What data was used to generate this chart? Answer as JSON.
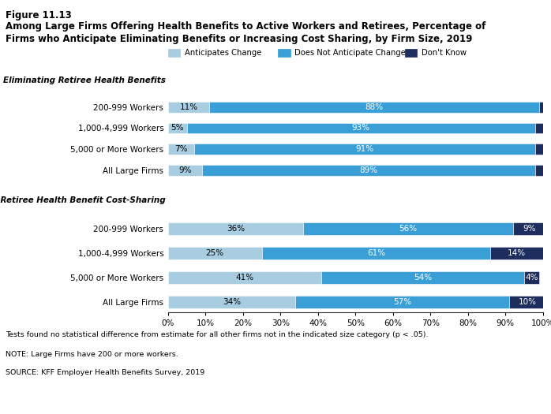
{
  "title_line1": "Figure 11.13",
  "title_line2a": "Among Large Firms Offering Health Benefits to Active Workers and Retirees, Percentage of",
  "title_line2b": "Firms who Anticipate Eliminating Benefits or Increasing Cost Sharing, by Firm Size, 2019",
  "legend_labels": [
    "Anticipates Change",
    "Does Not Anticipate Change",
    "Don't Know"
  ],
  "colors": [
    "#a8cce0",
    "#3a9fd6",
    "#1c2d5e"
  ],
  "section1_label": "Eliminating Retiree Health Benefits",
  "section2_label": "Increasing Retiree Health Benefit Cost-Sharing",
  "categories": [
    "200-999 Workers",
    "1,000-4,999 Workers",
    "5,000 or More Workers",
    "All Large Firms"
  ],
  "elim_data": [
    [
      11,
      88,
      1
    ],
    [
      5,
      93,
      2
    ],
    [
      7,
      91,
      2
    ],
    [
      9,
      89,
      2
    ]
  ],
  "elim_labels": [
    [
      "11%",
      "88%",
      ""
    ],
    [
      "5%",
      "93%",
      ""
    ],
    [
      "7%",
      "91%",
      ""
    ],
    [
      "9%",
      "89%",
      ""
    ]
  ],
  "cost_data": [
    [
      36,
      56,
      9
    ],
    [
      25,
      61,
      14
    ],
    [
      41,
      54,
      4
    ],
    [
      34,
      57,
      10
    ]
  ],
  "cost_labels": [
    [
      "36%",
      "56%",
      "9%"
    ],
    [
      "25%",
      "61%",
      "14%"
    ],
    [
      "41%",
      "54%",
      "4%"
    ],
    [
      "34%",
      "57%",
      "10%"
    ]
  ],
  "note1": "Tests found no statistical difference from estimate for all other firms not in the indicated size category (p < .05).",
  "note2": "NOTE: Large Firms have 200 or more workers.",
  "note3": "SOURCE: KFF Employer Health Benefits Survey, 2019",
  "xticks": [
    0,
    10,
    20,
    30,
    40,
    50,
    60,
    70,
    80,
    90,
    100
  ],
  "xtick_labels": [
    "0%",
    "10%",
    "20%",
    "30%",
    "40%",
    "50%",
    "60%",
    "70%",
    "80%",
    "90%",
    "100%"
  ]
}
